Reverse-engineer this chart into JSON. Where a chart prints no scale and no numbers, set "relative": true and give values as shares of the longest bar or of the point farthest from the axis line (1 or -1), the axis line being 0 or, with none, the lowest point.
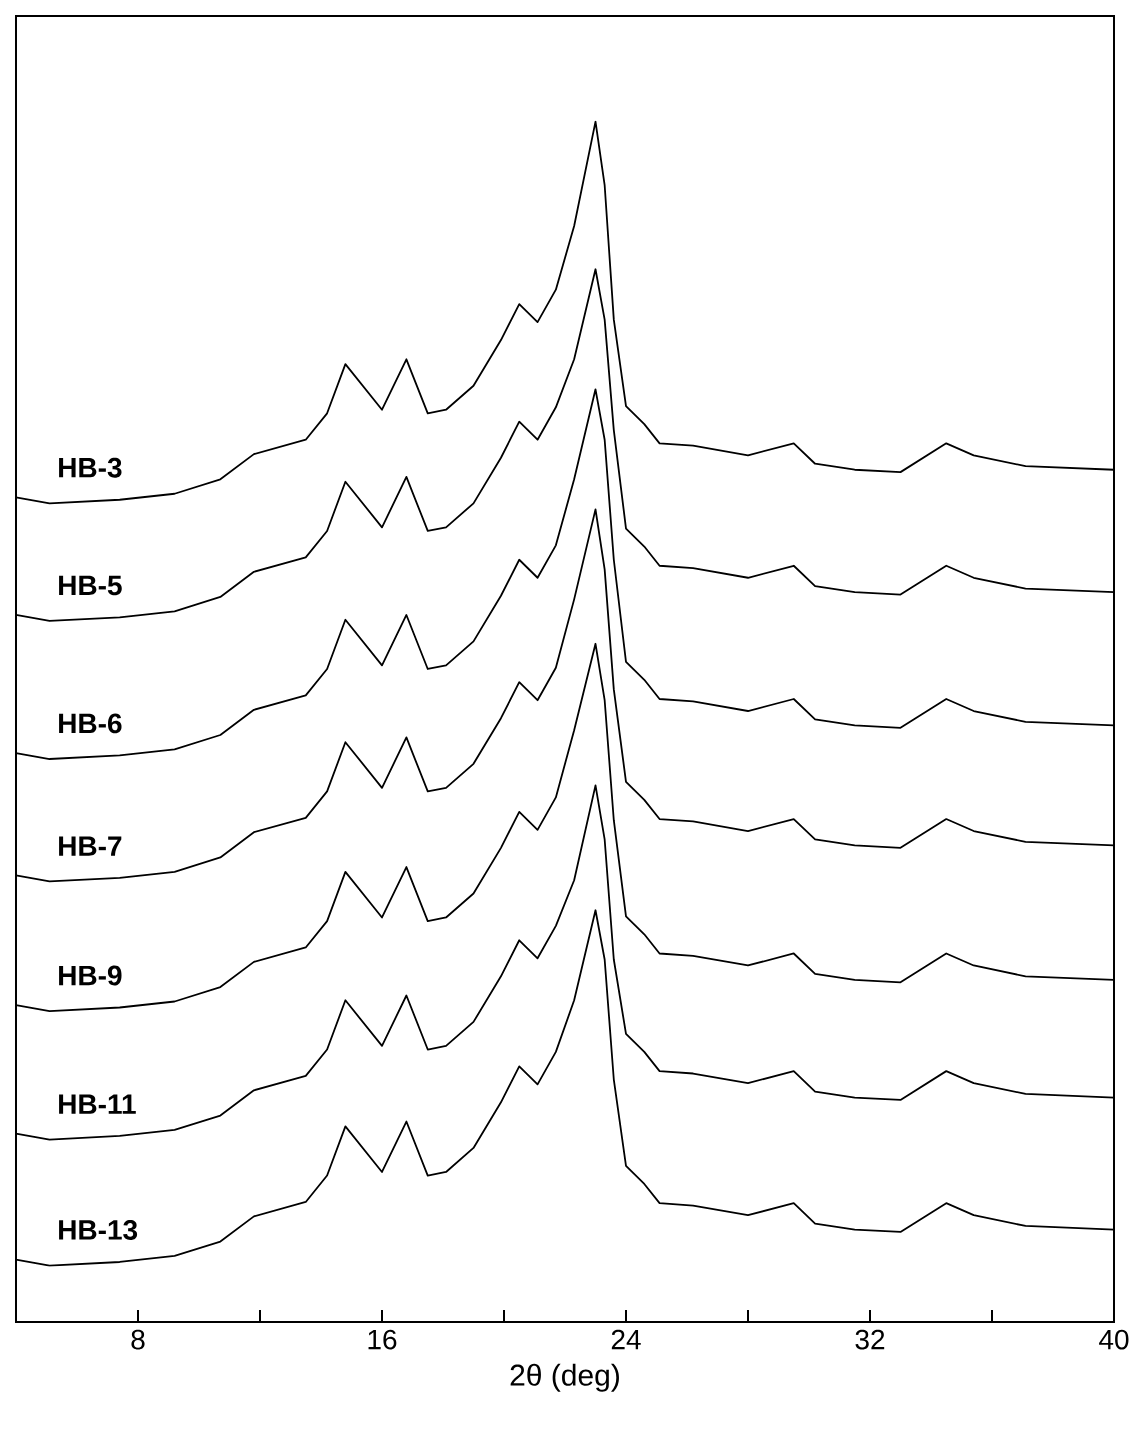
{
  "chart_data": {
    "type": "line",
    "xlabel": "2θ (deg)",
    "relative": true,
    "xlim": [
      4,
      40
    ],
    "xticks": [
      {
        "value": 8,
        "label": "8"
      },
      {
        "value": 12,
        "label": null
      },
      {
        "value": 16,
        "label": "16"
      },
      {
        "value": 20,
        "label": null
      },
      {
        "value": 24,
        "label": "24"
      },
      {
        "value": 28,
        "label": null
      },
      {
        "value": 32,
        "label": "32"
      },
      {
        "value": 36,
        "label": null
      },
      {
        "value": 40,
        "label": "40"
      }
    ],
    "x": [
      4.0,
      5.1,
      7.4,
      9.2,
      10.7,
      11.8,
      13.5,
      14.2,
      14.8,
      16.0,
      16.8,
      17.5,
      18.1,
      19.0,
      19.9,
      20.5,
      21.1,
      21.7,
      22.3,
      23.0,
      23.3,
      23.6,
      24.0,
      24.6,
      25.1,
      26.2,
      28.0,
      29.5,
      30.2,
      31.5,
      33.0,
      34.5,
      35.4,
      37.1,
      40.0
    ],
    "series": [
      {
        "name": "HB-3",
        "color": "#000000",
        "values": [
          0.687,
          0.682,
          0.685,
          0.69,
          0.702,
          0.723,
          0.735,
          0.757,
          0.798,
          0.76,
          0.802,
          0.757,
          0.76,
          0.78,
          0.818,
          0.848,
          0.833,
          0.86,
          0.913,
          1.0,
          0.947,
          0.835,
          0.763,
          0.748,
          0.732,
          0.73,
          0.722,
          0.732,
          0.715,
          0.71,
          0.708,
          0.732,
          0.722,
          0.713,
          0.71
        ]
      },
      {
        "name": "HB-5",
        "color": "#000000",
        "values": [
          0.589,
          0.584,
          0.587,
          0.592,
          0.604,
          0.625,
          0.637,
          0.659,
          0.7,
          0.662,
          0.704,
          0.659,
          0.662,
          0.682,
          0.72,
          0.75,
          0.735,
          0.762,
          0.802,
          0.877,
          0.835,
          0.743,
          0.661,
          0.646,
          0.63,
          0.628,
          0.62,
          0.63,
          0.613,
          0.608,
          0.606,
          0.63,
          0.62,
          0.611,
          0.608
        ]
      },
      {
        "name": "HB-6",
        "color": "#000000",
        "values": [
          0.474,
          0.469,
          0.472,
          0.477,
          0.489,
          0.51,
          0.522,
          0.544,
          0.585,
          0.547,
          0.589,
          0.544,
          0.547,
          0.567,
          0.605,
          0.635,
          0.62,
          0.647,
          0.702,
          0.777,
          0.735,
          0.635,
          0.55,
          0.535,
          0.519,
          0.517,
          0.509,
          0.519,
          0.502,
          0.497,
          0.495,
          0.519,
          0.509,
          0.5,
          0.497
        ]
      },
      {
        "name": "HB-7",
        "color": "#000000",
        "values": [
          0.372,
          0.367,
          0.37,
          0.375,
          0.387,
          0.408,
          0.42,
          0.442,
          0.483,
          0.445,
          0.487,
          0.442,
          0.445,
          0.465,
          0.503,
          0.533,
          0.518,
          0.545,
          0.602,
          0.677,
          0.627,
          0.527,
          0.45,
          0.435,
          0.419,
          0.417,
          0.409,
          0.419,
          0.402,
          0.397,
          0.395,
          0.419,
          0.409,
          0.4,
          0.397
        ]
      },
      {
        "name": "HB-9",
        "color": "#000000",
        "values": [
          0.264,
          0.259,
          0.262,
          0.267,
          0.279,
          0.3,
          0.312,
          0.334,
          0.375,
          0.337,
          0.379,
          0.334,
          0.337,
          0.357,
          0.395,
          0.425,
          0.41,
          0.437,
          0.493,
          0.565,
          0.518,
          0.418,
          0.338,
          0.323,
          0.307,
          0.305,
          0.297,
          0.307,
          0.29,
          0.285,
          0.283,
          0.307,
          0.297,
          0.288,
          0.285
        ]
      },
      {
        "name": "HB-11",
        "color": "#000000",
        "values": [
          0.157,
          0.152,
          0.155,
          0.16,
          0.172,
          0.193,
          0.205,
          0.227,
          0.268,
          0.23,
          0.272,
          0.227,
          0.23,
          0.25,
          0.288,
          0.318,
          0.303,
          0.33,
          0.368,
          0.447,
          0.402,
          0.302,
          0.24,
          0.225,
          0.209,
          0.207,
          0.199,
          0.209,
          0.192,
          0.187,
          0.185,
          0.209,
          0.199,
          0.19,
          0.187
        ]
      },
      {
        "name": "HB-13",
        "color": "#000000",
        "values": [
          0.052,
          0.047,
          0.05,
          0.055,
          0.067,
          0.088,
          0.1,
          0.122,
          0.163,
          0.125,
          0.167,
          0.122,
          0.125,
          0.145,
          0.183,
          0.213,
          0.198,
          0.225,
          0.268,
          0.343,
          0.302,
          0.202,
          0.13,
          0.115,
          0.099,
          0.097,
          0.089,
          0.099,
          0.082,
          0.077,
          0.075,
          0.099,
          0.089,
          0.08,
          0.077
        ]
      }
    ]
  }
}
